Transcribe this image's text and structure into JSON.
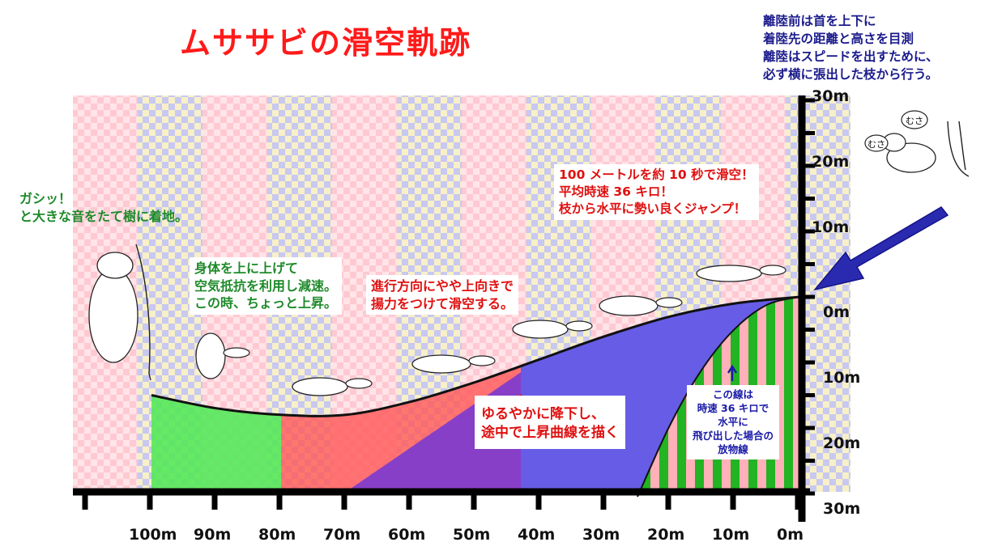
{
  "title": "ムササビの滑空軌跡",
  "top_note": [
    "離陸前は首を上下に",
    "着陸先の距離と高さを目測",
    "離陸はスピードを出すために、",
    "必ず横に張出した枝から行う。"
  ],
  "landing_note": [
    "ガシッ！",
    "と大きな音をたて樹に着地。"
  ],
  "body_up_note": [
    "身体を上に上げて",
    "空気抵抗を利用し減速。",
    "この時、ちょっと上昇。"
  ],
  "lift_note": [
    "進行方向にやや上向きで",
    "揚力をつけて滑空する。"
  ],
  "speed_note": [
    "100 メートルを約 10 秒で滑空！",
    "平均時速 36 キロ！",
    "枝から水平に勢い良くジャンプ！"
  ],
  "descent_note": [
    "ゆるやかに降下し、",
    "途中で上昇曲線を描く"
  ],
  "parabola_note": [
    "この線は",
    "時速 36 キロで",
    "水平に",
    "飛び出した場合の",
    "放物線"
  ],
  "bubble_text": [
    "むさ",
    "むさ"
  ],
  "chart_data": {
    "type": "line",
    "x_labels": [
      "100m",
      "90m",
      "80m",
      "70m",
      "60m",
      "50m",
      "40m",
      "30m",
      "20m",
      "10m",
      "0m"
    ],
    "y_labels_above": [
      "30m",
      "20m",
      "10m"
    ],
    "y_labels_below": [
      "0m",
      "10m",
      "20m",
      "30m"
    ],
    "xlim": [
      100,
      0
    ],
    "ylim": [
      -30,
      30
    ],
    "glide_path": {
      "x": [
        0,
        10,
        20,
        30,
        40,
        50,
        60,
        70,
        80,
        90,
        100
      ],
      "y": [
        0,
        -1,
        -3,
        -6,
        -9.5,
        -13,
        -16,
        -18,
        -18,
        -17,
        -15
      ]
    },
    "parabola_36kmh": {
      "x": [
        0,
        5,
        10,
        15,
        20,
        25
      ],
      "y": [
        0,
        -1.2,
        -4.9,
        -11,
        -19.6,
        -30.5
      ]
    },
    "colors": {
      "green_zone": "#55e85a",
      "red_zone": "#ff5a5a",
      "purple_zone": "#7a3ad0",
      "blue_zone": "#5a5af0",
      "stripe_green": "#22b422",
      "arrow": "#2a2ab0"
    }
  }
}
